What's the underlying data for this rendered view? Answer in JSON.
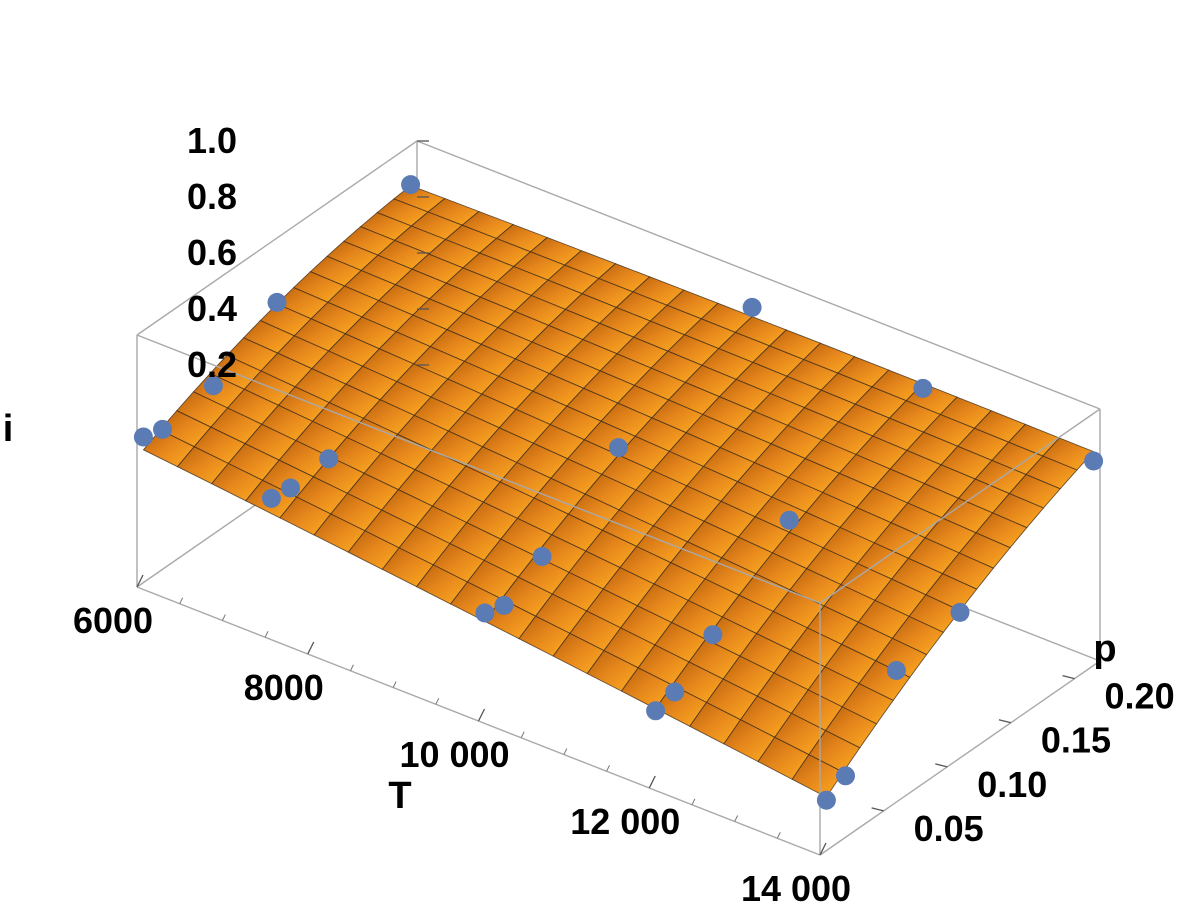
{
  "chart_data": {
    "type": "surface3d",
    "title": "",
    "axes": {
      "x": {
        "label": "T",
        "range": [
          6000,
          14000
        ],
        "ticks": [
          6000,
          8000,
          10000,
          12000,
          14000
        ],
        "tick_labels": [
          "6000",
          "8000",
          "10 000",
          "12 000",
          "14 000"
        ]
      },
      "y": {
        "label": "p",
        "range": [
          0.0,
          0.22
        ],
        "ticks": [
          0.05,
          0.1,
          0.15,
          0.2
        ],
        "tick_labels": [
          "0.05",
          "0.10",
          "0.15",
          "0.20"
        ]
      },
      "z": {
        "label": "i",
        "range": [
          0.1,
          1.0
        ],
        "ticks": [
          0.2,
          0.4,
          0.6,
          0.8,
          1.0
        ],
        "tick_labels": [
          "0.2",
          "0.4",
          "0.6",
          "0.8",
          "1.0"
        ]
      }
    },
    "surface_color": "#f29a1e",
    "point_color": "#5b7bb4",
    "box_color": "#a9a9a9",
    "grid": false,
    "legend": "none",
    "points": [
      {
        "T": 6000,
        "p": 0.005,
        "i": 0.62
      },
      {
        "T": 6000,
        "p": 0.02,
        "i": 0.6
      },
      {
        "T": 6000,
        "p": 0.06,
        "i": 0.63
      },
      {
        "T": 6000,
        "p": 0.11,
        "i": 0.77
      },
      {
        "T": 6000,
        "p": 0.215,
        "i": 0.86
      },
      {
        "T": 7500,
        "p": 0.005,
        "i": 0.58
      },
      {
        "T": 7500,
        "p": 0.02,
        "i": 0.57
      },
      {
        "T": 7500,
        "p": 0.05,
        "i": 0.58
      },
      {
        "T": 10000,
        "p": 0.005,
        "i": 0.47
      },
      {
        "T": 10000,
        "p": 0.02,
        "i": 0.45
      },
      {
        "T": 10000,
        "p": 0.05,
        "i": 0.53
      },
      {
        "T": 10000,
        "p": 0.11,
        "i": 0.73
      },
      {
        "T": 10000,
        "p": 0.215,
        "i": 0.9
      },
      {
        "T": 12000,
        "p": 0.005,
        "i": 0.36
      },
      {
        "T": 12000,
        "p": 0.02,
        "i": 0.38
      },
      {
        "T": 12000,
        "p": 0.05,
        "i": 0.49
      },
      {
        "T": 12000,
        "p": 0.11,
        "i": 0.71
      },
      {
        "T": 12000,
        "p": 0.215,
        "i": 0.85
      },
      {
        "T": 14000,
        "p": 0.005,
        "i": 0.28
      },
      {
        "T": 14000,
        "p": 0.02,
        "i": 0.32
      },
      {
        "T": 14000,
        "p": 0.06,
        "i": 0.57
      },
      {
        "T": 14000,
        "p": 0.11,
        "i": 0.62
      },
      {
        "T": 14000,
        "p": 0.215,
        "i": 0.83
      }
    ]
  }
}
